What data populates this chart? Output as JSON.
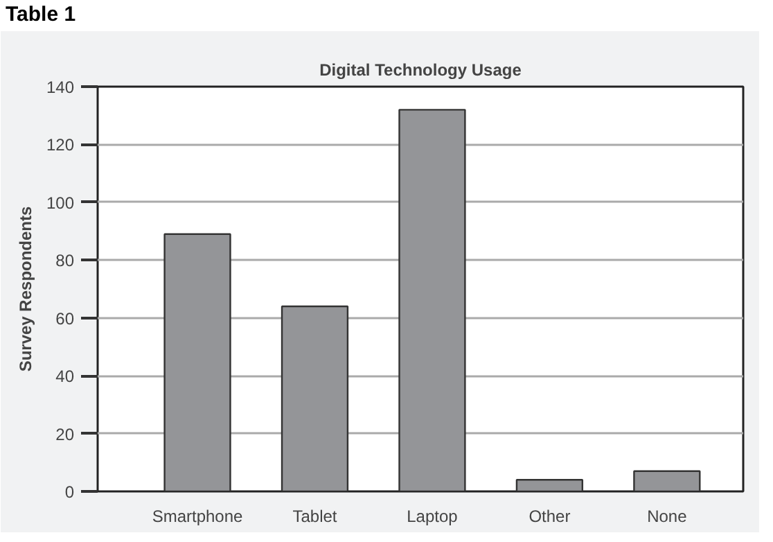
{
  "chart_data": {
    "type": "bar",
    "title": "Digital Technology Usage",
    "annotations": [
      "Table 1"
    ],
    "ylabel": "Survey Respondents",
    "categories": [
      "Smartphone",
      "Tablet",
      "Laptop",
      "Other",
      "None"
    ],
    "values": [
      89,
      64,
      132,
      4,
      7
    ],
    "color": "#949598",
    "ylim": [
      0,
      140
    ],
    "yticks": [
      0,
      20,
      40,
      60,
      80,
      100,
      120,
      140
    ],
    "grid": "y"
  }
}
